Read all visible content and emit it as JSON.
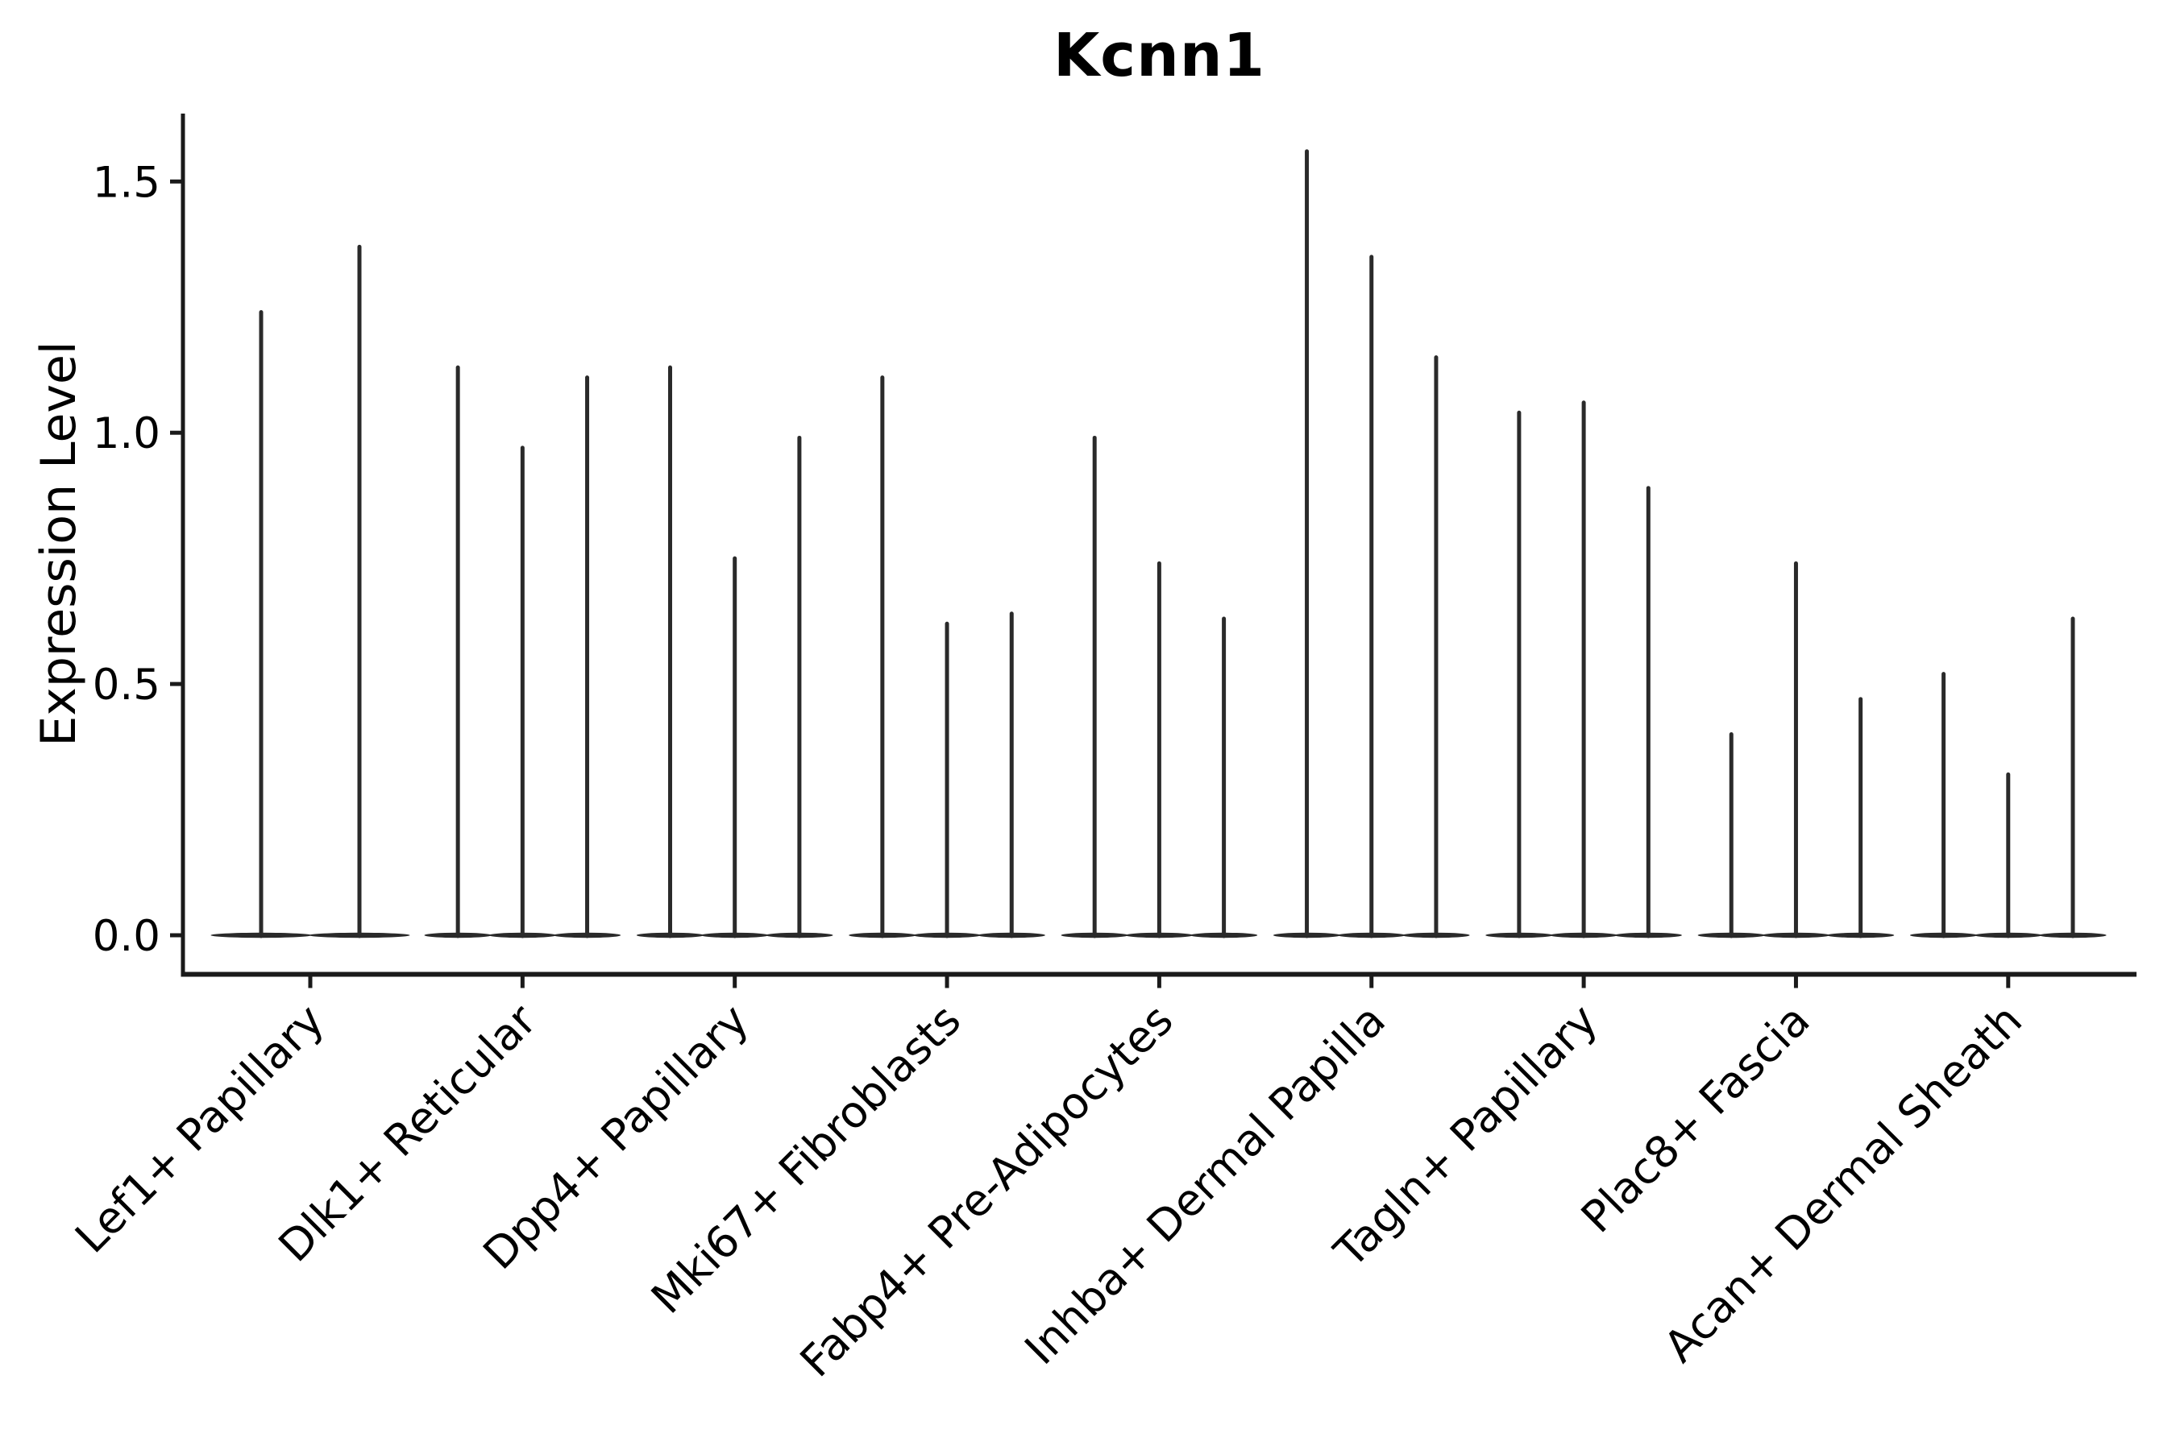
{
  "colors": {
    "background": "#ffffff",
    "ink": "#2a2a2a",
    "spine": "#1a1a1a",
    "text": "#000000"
  },
  "chart_data": {
    "type": "violin",
    "title": "Kcnn1",
    "xlabel": "",
    "ylabel": "Expression Level",
    "ytick_labels": [
      "0.0",
      "0.5",
      "1.0",
      "1.5"
    ],
    "ylim": [
      -0.08,
      1.64
    ],
    "grid": false,
    "legend": "none",
    "orientation": "vertical",
    "categories": [
      "Lef1+ Papillary",
      "Dlk1+ Reticular",
      "Dpp4+ Papillary",
      "Mki67+ Fibroblasts",
      "Fabp4+ Pre-Adipocytes",
      "Inhba+ Dermal Papilla",
      "Tagln+ Papillary",
      "Plac8+ Fascia",
      "Acan+ Dermal Sheath"
    ],
    "groups": [
      {
        "category": "Lef1+ Papillary",
        "spike_maxima": [
          1.24,
          1.37
        ]
      },
      {
        "category": "Dlk1+ Reticular",
        "spike_maxima": [
          1.13,
          0.97,
          1.11
        ]
      },
      {
        "category": "Dpp4+ Papillary",
        "spike_maxima": [
          1.13,
          0.75,
          0.99
        ]
      },
      {
        "category": "Mki67+ Fibroblasts",
        "spike_maxima": [
          1.11,
          0.62,
          0.64
        ]
      },
      {
        "category": "Fabp4+ Pre-Adipocytes",
        "spike_maxima": [
          0.99,
          0.74,
          0.63
        ]
      },
      {
        "category": "Inhba+ Dermal Papilla",
        "spike_maxima": [
          1.56,
          1.35,
          1.15
        ]
      },
      {
        "category": "Tagln+ Papillary",
        "spike_maxima": [
          1.04,
          1.06,
          0.89
        ]
      },
      {
        "category": "Plac8+ Fascia",
        "spike_maxima": [
          0.4,
          0.74,
          0.47
        ]
      },
      {
        "category": "Acan+ Dermal Sheath",
        "spike_maxima": [
          0.52,
          0.32,
          0.63
        ]
      }
    ]
  }
}
